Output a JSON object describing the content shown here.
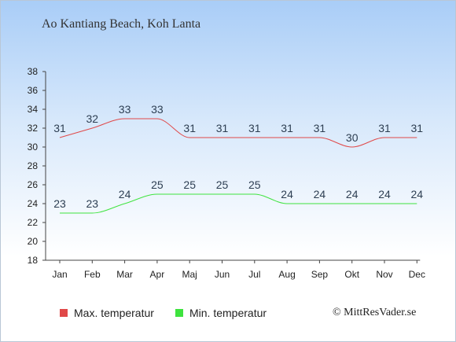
{
  "title": "Ao Kantiang Beach, Koh Lanta",
  "credit": "© MittResVader.se",
  "legend": {
    "max_label": "Max. temperatur",
    "min_label": "Min. temperatur"
  },
  "colors": {
    "max": "#e04848",
    "min": "#3ee33e"
  },
  "chart_data": {
    "type": "line",
    "categories": [
      "Jan",
      "Feb",
      "Mar",
      "Apr",
      "Maj",
      "Jun",
      "Jul",
      "Aug",
      "Sep",
      "Okt",
      "Nov",
      "Dec"
    ],
    "series": [
      {
        "name": "Max. temperatur",
        "values": [
          31,
          32,
          33,
          33,
          31,
          31,
          31,
          31,
          31,
          30,
          31,
          31
        ]
      },
      {
        "name": "Min. temperatur",
        "values": [
          23,
          23,
          24,
          25,
          25,
          25,
          25,
          24,
          24,
          24,
          24,
          24
        ]
      }
    ],
    "ylim": [
      18,
      38
    ],
    "yticks": [
      18,
      20,
      22,
      24,
      26,
      28,
      30,
      32,
      34,
      36,
      38
    ],
    "grid": false,
    "legend_position": "bottom"
  }
}
